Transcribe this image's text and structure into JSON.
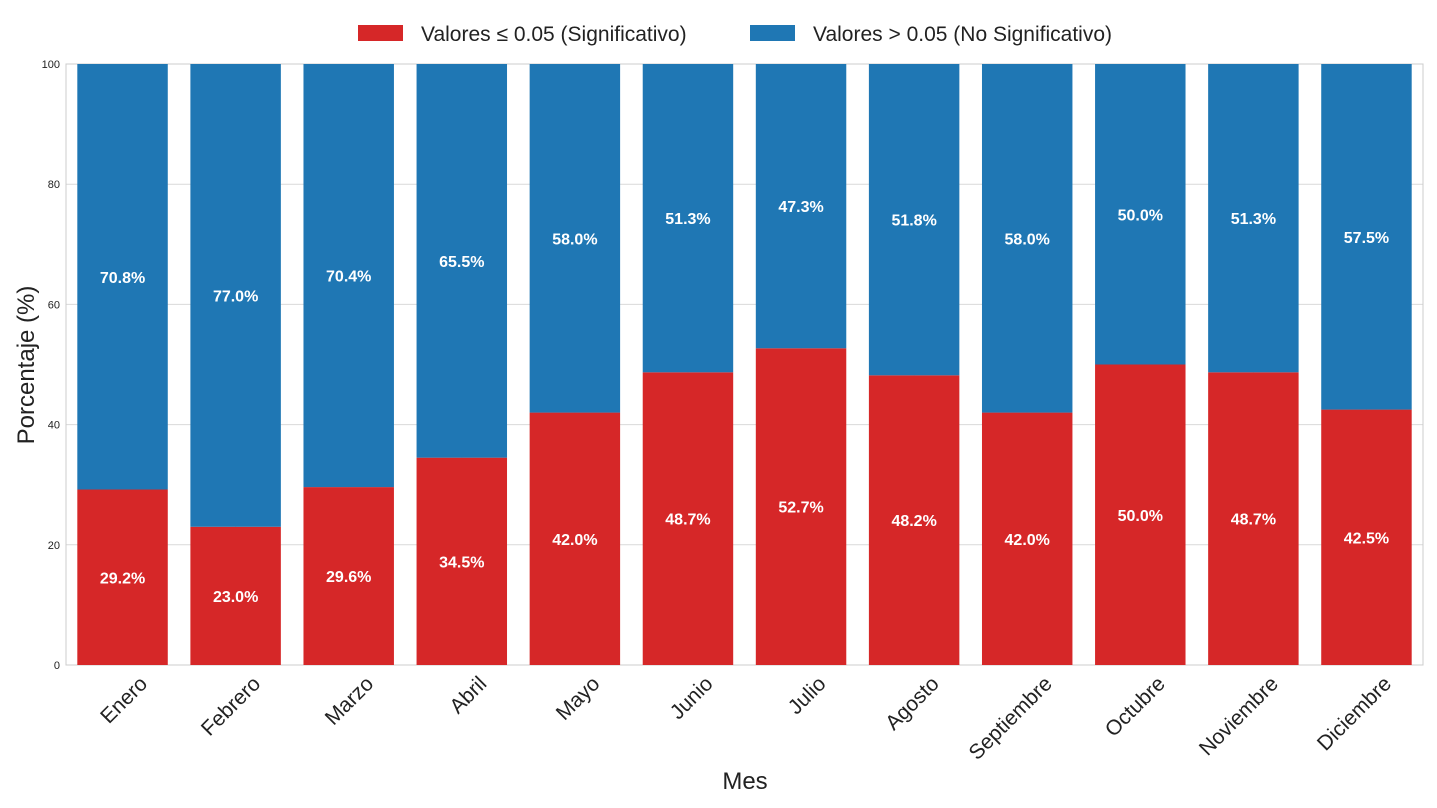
{
  "chart_data": {
    "type": "bar",
    "stacked": true,
    "categories": [
      "Enero",
      "Febrero",
      "Marzo",
      "Abril",
      "Mayo",
      "Junio",
      "Julio",
      "Agosto",
      "Septiembre",
      "Octubre",
      "Noviembre",
      "Diciembre"
    ],
    "series": [
      {
        "name": "Valores ≤ 0.05 (Significativo)",
        "color": "#d62728",
        "values": [
          29.2,
          23.0,
          29.6,
          34.5,
          42.0,
          48.7,
          52.7,
          48.2,
          42.0,
          50.0,
          48.7,
          42.5
        ],
        "labels": [
          "29.2%",
          "23.0%",
          "29.6%",
          "34.5%",
          "42.0%",
          "48.7%",
          "52.7%",
          "48.2%",
          "42.0%",
          "50.0%",
          "48.7%",
          "42.5%"
        ]
      },
      {
        "name": "Valores > 0.05 (No Significativo)",
        "color": "#1f77b4",
        "values": [
          70.8,
          77.0,
          70.4,
          65.5,
          58.0,
          51.3,
          47.3,
          51.8,
          58.0,
          50.0,
          51.3,
          57.5
        ],
        "labels": [
          "70.8%",
          "77.0%",
          "70.4%",
          "65.5%",
          "58.0%",
          "51.3%",
          "47.3%",
          "51.8%",
          "58.0%",
          "50.0%",
          "51.3%",
          "57.5%"
        ]
      }
    ],
    "xlabel": "Mes",
    "ylabel": "Porcentaje (%)",
    "ylim": [
      0,
      100
    ],
    "yticks": [
      "0",
      "20",
      "40",
      "60",
      "80",
      "100"
    ],
    "grid": true,
    "legend_position": "top-center"
  }
}
